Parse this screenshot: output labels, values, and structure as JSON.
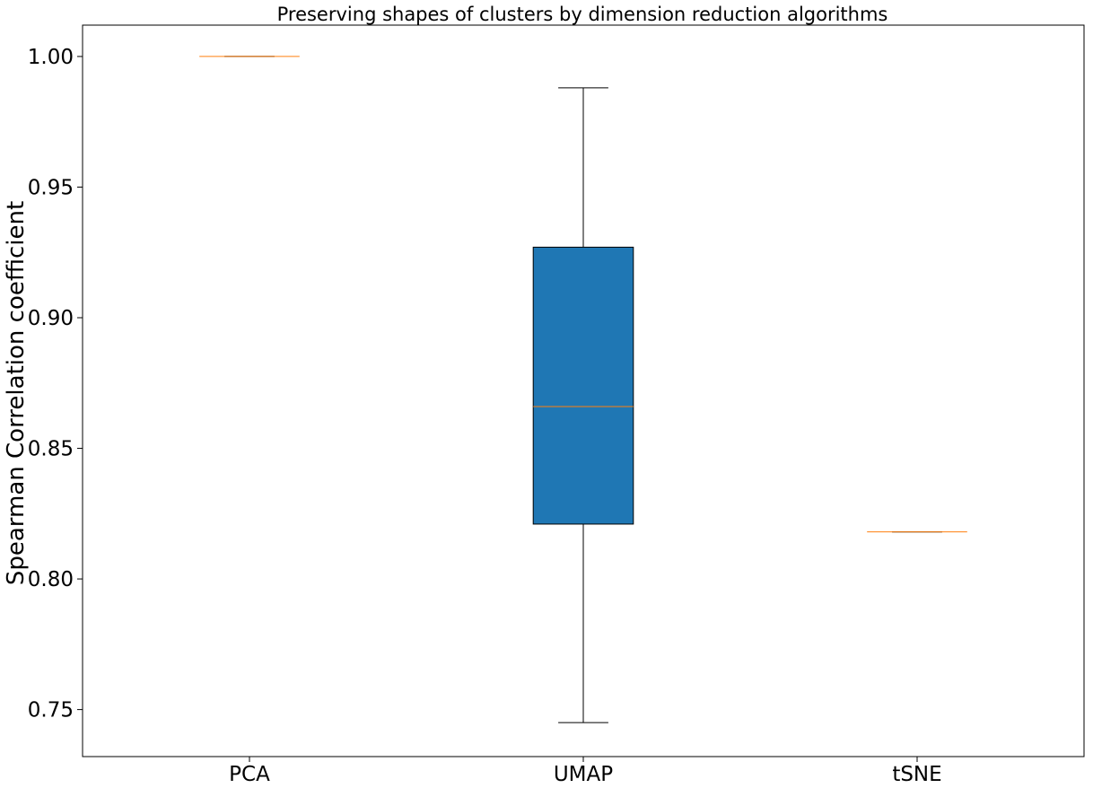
{
  "chart_data": {
    "type": "boxplot",
    "title": "Preserving shapes of clusters by dimension reduction algorithms",
    "xlabel": "",
    "ylabel": "Spearman Correlation coefficient",
    "categories": [
      "PCA",
      "UMAP",
      "tSNE"
    ],
    "boxes": [
      {
        "label": "PCA",
        "whisker_low": 1.0,
        "q1": 1.0,
        "median": 1.0,
        "q3": 1.0,
        "whisker_high": 1.0
      },
      {
        "label": "UMAP",
        "whisker_low": 0.745,
        "q1": 0.821,
        "median": 0.866,
        "q3": 0.927,
        "whisker_high": 0.988
      },
      {
        "label": "tSNE",
        "whisker_low": 0.818,
        "q1": 0.818,
        "median": 0.818,
        "q3": 0.818,
        "whisker_high": 0.818
      }
    ],
    "ylim": [
      0.732,
      1.012
    ],
    "yticks": [
      0.75,
      0.8,
      0.85,
      0.9,
      0.95,
      1.0
    ],
    "ytick_labels": [
      "0.75",
      "0.80",
      "0.85",
      "0.90",
      "0.95",
      "1.00"
    ],
    "grid": false,
    "colors": {
      "box_fill": "#1f77b4",
      "median": "#ff7f0e",
      "line": "#000000"
    }
  }
}
